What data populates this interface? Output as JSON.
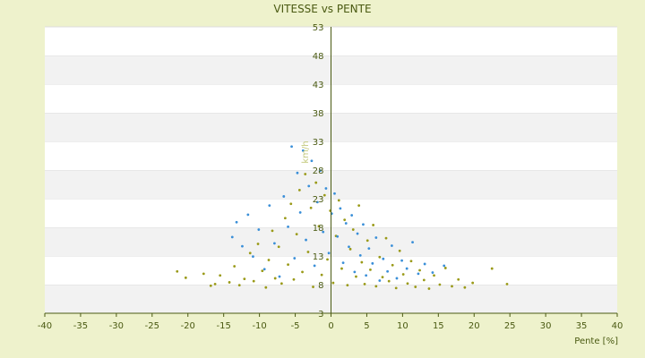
{
  "chart_data": {
    "type": "scatter",
    "title": "VITESSE vs PENTE",
    "xlabel": "Pente [%]",
    "ylabel": "km/h",
    "xlim": [
      -40,
      40
    ],
    "ylim": [
      3,
      53
    ],
    "xticks": [
      -40,
      -35,
      -30,
      -25,
      -20,
      -15,
      -10,
      -5,
      0,
      5,
      10,
      15,
      20,
      25,
      30,
      35,
      40
    ],
    "yticks": [
      3,
      8,
      13,
      18,
      23,
      28,
      33,
      38,
      43,
      48,
      53
    ],
    "grid": true,
    "legend": "none",
    "series": [
      {
        "color": "#9a9a18",
        "points": [
          [
            -21.5,
            10.3
          ],
          [
            -20.3,
            9.2
          ],
          [
            -17.8,
            9.9
          ],
          [
            -16.8,
            7.8
          ],
          [
            -16.2,
            8.1
          ],
          [
            -15.5,
            9.6
          ],
          [
            -14.2,
            8.4
          ],
          [
            -13.5,
            11.2
          ],
          [
            -12.8,
            7.9
          ],
          [
            -12.1,
            9.0
          ],
          [
            -11.3,
            13.5
          ],
          [
            -10.8,
            8.6
          ],
          [
            -10.2,
            15.1
          ],
          [
            -9.6,
            10.4
          ],
          [
            -9.1,
            7.5
          ],
          [
            -8.7,
            12.3
          ],
          [
            -8.2,
            17.4
          ],
          [
            -7.8,
            9.1
          ],
          [
            -7.3,
            14.6
          ],
          [
            -6.9,
            8.2
          ],
          [
            -6.4,
            19.6
          ],
          [
            -6.0,
            11.5
          ],
          [
            -5.6,
            22.1
          ],
          [
            -5.2,
            8.9
          ],
          [
            -4.8,
            16.8
          ],
          [
            -4.4,
            24.5
          ],
          [
            -4.0,
            10.2
          ],
          [
            -3.6,
            27.3
          ],
          [
            -3.2,
            13.7
          ],
          [
            -2.8,
            21.4
          ],
          [
            -2.5,
            7.6
          ],
          [
            -2.1,
            25.8
          ],
          [
            -1.7,
            18.2
          ],
          [
            -1.3,
            9.7
          ],
          [
            -0.9,
            23.6
          ],
          [
            -0.5,
            12.4
          ],
          [
            -0.1,
            20.9
          ],
          [
            0.3,
            8.3
          ],
          [
            0.7,
            16.5
          ],
          [
            1.1,
            22.7
          ],
          [
            1.5,
            10.8
          ],
          [
            1.9,
            19.3
          ],
          [
            2.3,
            7.9
          ],
          [
            2.7,
            14.2
          ],
          [
            3.1,
            17.6
          ],
          [
            3.5,
            9.4
          ],
          [
            3.9,
            21.8
          ],
          [
            4.3,
            11.9
          ],
          [
            4.7,
            8.1
          ],
          [
            5.1,
            15.7
          ],
          [
            5.5,
            10.6
          ],
          [
            5.9,
            18.4
          ],
          [
            6.3,
            7.7
          ],
          [
            6.8,
            12.8
          ],
          [
            7.2,
            9.3
          ],
          [
            7.7,
            16.1
          ],
          [
            8.1,
            8.6
          ],
          [
            8.6,
            11.4
          ],
          [
            9.1,
            7.4
          ],
          [
            9.6,
            13.9
          ],
          [
            10.1,
            9.8
          ],
          [
            10.7,
            8.2
          ],
          [
            11.2,
            12.1
          ],
          [
            11.8,
            7.6
          ],
          [
            12.4,
            10.5
          ],
          [
            13.0,
            8.8
          ],
          [
            13.7,
            7.3
          ],
          [
            14.4,
            9.6
          ],
          [
            15.2,
            8.0
          ],
          [
            16.0,
            10.9
          ],
          [
            16.9,
            7.7
          ],
          [
            17.8,
            8.9
          ],
          [
            18.7,
            7.5
          ],
          [
            19.8,
            8.3
          ],
          [
            22.5,
            10.8
          ],
          [
            24.6,
            8.1
          ]
        ]
      },
      {
        "color": "#3a8fd8",
        "points": [
          [
            -13.8,
            16.3
          ],
          [
            -13.2,
            18.9
          ],
          [
            -12.4,
            14.7
          ],
          [
            -11.6,
            20.2
          ],
          [
            -10.9,
            12.9
          ],
          [
            -10.1,
            17.6
          ],
          [
            -9.3,
            10.7
          ],
          [
            -8.6,
            21.8
          ],
          [
            -7.9,
            15.2
          ],
          [
            -7.2,
            9.4
          ],
          [
            -6.6,
            23.4
          ],
          [
            -6.0,
            18.1
          ],
          [
            -5.5,
            32.1
          ],
          [
            -5.1,
            12.6
          ],
          [
            -4.7,
            27.5
          ],
          [
            -4.3,
            20.6
          ],
          [
            -3.9,
            31.4
          ],
          [
            -3.5,
            15.8
          ],
          [
            -3.1,
            25.2
          ],
          [
            -2.7,
            29.6
          ],
          [
            -2.3,
            11.3
          ],
          [
            -1.9,
            22.4
          ],
          [
            -1.5,
            27.9
          ],
          [
            -1.1,
            17.2
          ],
          [
            -0.7,
            24.8
          ],
          [
            -0.3,
            13.5
          ],
          [
            0.1,
            20.4
          ],
          [
            0.5,
            23.9
          ],
          [
            0.9,
            16.4
          ],
          [
            1.3,
            21.3
          ],
          [
            1.7,
            11.8
          ],
          [
            2.1,
            18.7
          ],
          [
            2.5,
            14.6
          ],
          [
            2.9,
            20.1
          ],
          [
            3.3,
            10.2
          ],
          [
            3.7,
            16.9
          ],
          [
            4.1,
            13.1
          ],
          [
            4.5,
            18.5
          ],
          [
            4.9,
            9.6
          ],
          [
            5.3,
            14.3
          ],
          [
            5.8,
            11.7
          ],
          [
            6.3,
            16.2
          ],
          [
            6.8,
            8.7
          ],
          [
            7.3,
            12.5
          ],
          [
            7.9,
            10.3
          ],
          [
            8.5,
            14.8
          ],
          [
            9.2,
            9.1
          ],
          [
            9.9,
            12.2
          ],
          [
            10.6,
            10.8
          ],
          [
            11.4,
            15.4
          ],
          [
            12.2,
            9.9
          ],
          [
            13.1,
            11.6
          ],
          [
            14.2,
            10.1
          ],
          [
            15.8,
            11.3
          ]
        ]
      }
    ]
  }
}
